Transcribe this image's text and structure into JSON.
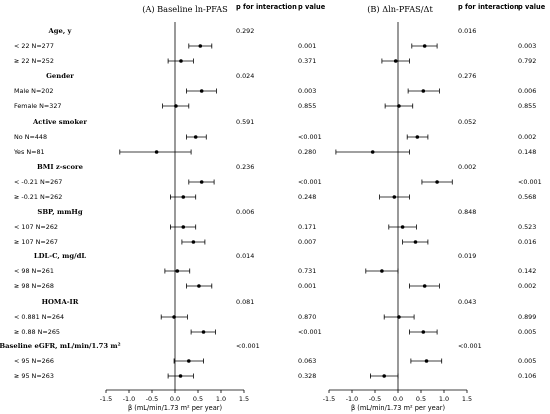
{
  "columns": {
    "panel_a_title": "(A) Baseline ln-PFAS",
    "panel_b_title": "(B) Δln-PFAS/Δt",
    "p_interaction_label": "p for interaction",
    "p_value_label": "p value"
  },
  "xlabel": "β (mL/min/1.73 m² per year)",
  "chart_data": [
    {
      "type": "forest",
      "title": "(A) Baseline ln-PFAS",
      "xlabel": "β (mL/min/1.73 m² per year)",
      "xlim": [
        -1.6,
        1.6
      ],
      "xticks": [
        "-1.5",
        "-1.0",
        "-0.5",
        "0.0",
        "0.5",
        "1.0",
        "1.5"
      ],
      "reference_line": 0,
      "groups": [
        {
          "label": "Age, y",
          "p_interaction": "0.292",
          "rows": [
            {
              "label": "< 22   N=277",
              "beta": 0.55,
              "lo": 0.3,
              "hi": 0.8,
              "p": "0.001"
            },
            {
              "label": "≥ 22   N=252",
              "beta": 0.13,
              "lo": -0.15,
              "hi": 0.4,
              "p": "0.371"
            }
          ]
        },
        {
          "label": "Gender",
          "p_interaction": "0.024",
          "rows": [
            {
              "label": "Male   N=202",
              "beta": 0.58,
              "lo": 0.25,
              "hi": 0.9,
              "p": "0.003"
            },
            {
              "label": "Female   N=327",
              "beta": 0.02,
              "lo": -0.27,
              "hi": 0.3,
              "p": "0.855"
            }
          ]
        },
        {
          "label": "Active smoker",
          "p_interaction": "0.591",
          "rows": [
            {
              "label": "No   N=448",
              "beta": 0.45,
              "lo": 0.25,
              "hi": 0.68,
              "p": "<0.001"
            },
            {
              "label": "Yes   N=81",
              "beta": -0.4,
              "lo": -1.2,
              "hi": 0.35,
              "p": "0.280"
            }
          ]
        },
        {
          "label": "BMI z-score",
          "p_interaction": "0.236",
          "rows": [
            {
              "label": "< -0.21   N=267",
              "beta": 0.58,
              "lo": 0.3,
              "hi": 0.85,
              "p": "<0.001"
            },
            {
              "label": "≥ -0.21   N=262",
              "beta": 0.18,
              "lo": -0.1,
              "hi": 0.45,
              "p": "0.248"
            }
          ]
        },
        {
          "label": "SBP, mmHg",
          "p_interaction": "0.006",
          "rows": [
            {
              "label": "< 107   N=262",
              "beta": 0.18,
              "lo": -0.1,
              "hi": 0.45,
              "p": "0.171"
            },
            {
              "label": "≥ 107   N=267",
              "beta": 0.4,
              "lo": 0.15,
              "hi": 0.65,
              "p": "0.007"
            }
          ]
        },
        {
          "label": "LDL-C, mg/dL",
          "p_interaction": "0.014",
          "rows": [
            {
              "label": "< 98   N=261",
              "beta": 0.05,
              "lo": -0.22,
              "hi": 0.32,
              "p": "0.731"
            },
            {
              "label": "≥ 98   N=268",
              "beta": 0.52,
              "lo": 0.25,
              "hi": 0.8,
              "p": "0.001"
            }
          ]
        },
        {
          "label": "HOMA-IR",
          "p_interaction": "0.081",
          "rows": [
            {
              "label": "< 0.881   N=264",
              "beta": -0.02,
              "lo": -0.3,
              "hi": 0.27,
              "p": "0.870"
            },
            {
              "label": "≥ 0.88   N=265",
              "beta": 0.62,
              "lo": 0.35,
              "hi": 0.88,
              "p": "<0.001"
            }
          ]
        },
        {
          "label": "Baseline eGFR, mL/min/1.73 m²",
          "p_interaction": "<0.001",
          "rows": [
            {
              "label": "< 95   N=266",
              "beta": 0.3,
              "lo": -0.02,
              "hi": 0.62,
              "p": "0.063"
            },
            {
              "label": "≥ 95   N=263",
              "beta": 0.12,
              "lo": -0.15,
              "hi": 0.4,
              "p": "0.328"
            }
          ]
        }
      ]
    },
    {
      "type": "forest",
      "title": "(B) Δln-PFAS/Δt",
      "xlabel": "β (mL/min/1.73 m² per year)",
      "xlim": [
        -1.6,
        1.6
      ],
      "xticks": [
        "-1.5",
        "-1.0",
        "-0.5",
        "0.0",
        "0.5",
        "1.0",
        "1.5"
      ],
      "reference_line": 0,
      "groups": [
        {
          "label": "Age, y",
          "p_interaction": "0.016",
          "rows": [
            {
              "beta": 0.58,
              "lo": 0.3,
              "hi": 0.85,
              "p": "0.003"
            },
            {
              "beta": -0.05,
              "lo": -0.35,
              "hi": 0.25,
              "p": "0.792"
            }
          ]
        },
        {
          "label": "Gender",
          "p_interaction": "0.276",
          "rows": [
            {
              "beta": 0.55,
              "lo": 0.22,
              "hi": 0.9,
              "p": "0.006"
            },
            {
              "beta": 0.02,
              "lo": -0.28,
              "hi": 0.32,
              "p": "0.855"
            }
          ]
        },
        {
          "label": "Active smoker",
          "p_interaction": "0.052",
          "rows": [
            {
              "beta": 0.42,
              "lo": 0.2,
              "hi": 0.65,
              "p": "0.002"
            },
            {
              "beta": -0.55,
              "lo": -1.35,
              "hi": 0.25,
              "p": "0.148"
            }
          ]
        },
        {
          "label": "BMI z-score",
          "p_interaction": "0.002",
          "rows": [
            {
              "beta": 0.85,
              "lo": 0.52,
              "hi": 1.18,
              "p": "<0.001"
            },
            {
              "beta": -0.08,
              "lo": -0.4,
              "hi": 0.25,
              "p": "0.568"
            }
          ]
        },
        {
          "label": "SBP, mmHg",
          "p_interaction": "0.848",
          "rows": [
            {
              "beta": 0.1,
              "lo": -0.2,
              "hi": 0.4,
              "p": "0.523"
            },
            {
              "beta": 0.38,
              "lo": 0.1,
              "hi": 0.65,
              "p": "0.016"
            }
          ]
        },
        {
          "label": "LDL-C, mg/dL",
          "p_interaction": "0.019",
          "rows": [
            {
              "beta": -0.35,
              "lo": -0.7,
              "hi": 0.0,
              "p": "0.142"
            },
            {
              "beta": 0.58,
              "lo": 0.25,
              "hi": 0.9,
              "p": "0.002"
            }
          ]
        },
        {
          "label": "HOMA-IR",
          "p_interaction": "0.043",
          "rows": [
            {
              "beta": 0.02,
              "lo": -0.3,
              "hi": 0.35,
              "p": "0.899"
            },
            {
              "beta": 0.55,
              "lo": 0.25,
              "hi": 0.85,
              "p": "0.005"
            }
          ]
        },
        {
          "label": "Baseline eGFR, mL/min/1.73 m²",
          "p_interaction": "<0.001",
          "rows": [
            {
              "beta": 0.62,
              "lo": 0.28,
              "hi": 0.95,
              "p": "0.005"
            },
            {
              "beta": -0.3,
              "lo": -0.6,
              "hi": 0.0,
              "p": "0.106"
            }
          ]
        }
      ]
    }
  ]
}
